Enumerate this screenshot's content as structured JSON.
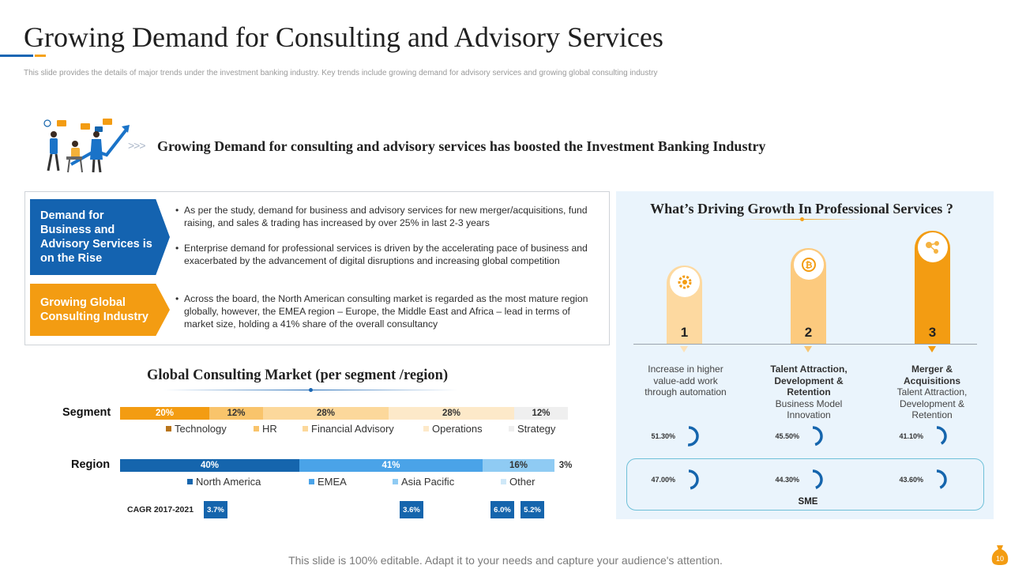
{
  "slide": {
    "title": "Growing Demand for Consulting and Advisory Services",
    "subtitle": "This slide provides the details of major trends under the investment banking industry. Key trends include growing demand for advisory services and growing global consulting industry",
    "footer": "This slide is 100% editable. Adapt it to your needs and capture your audience's attention.",
    "page_number": "10"
  },
  "hero": {
    "chevrons": ">>>",
    "text": "Growing Demand for consulting and advisory services has boosted the Investment Banking Industry"
  },
  "trends": {
    "tags": [
      {
        "label": "Demand for Business and Advisory Services is on the Rise"
      },
      {
        "label": "Growing Global Consulting Industry"
      }
    ],
    "bullets": [
      "As per the study, demand for business and advisory services for new merger/acquisitions, fund raising, and sales & trading has increased by over 25% in last 2-3 years",
      "Enterprise demand for professional services is driven by the accelerating pace of business and exacerbated by the advancement of digital disruptions and increasing global competition",
      "Across the board, the North American consulting market is regarded as the most mature region globally, however, the EMEA region – Europe, the Middle East and Africa – lead in terms of market size, holding a 41% share of the overall consultancy"
    ]
  },
  "market": {
    "title": "Global Consulting Market (per segment /region)",
    "segment_label": "Segment",
    "region_label": "Region",
    "segments": [
      {
        "name": "Technology",
        "label": "20%",
        "value": 20,
        "color": "#f39c12"
      },
      {
        "name": "HR",
        "label": "12%",
        "value": 12,
        "color": "#f9c46b"
      },
      {
        "name": "Financial Advisory",
        "label": "28%",
        "value": 28,
        "color": "#fcd89b"
      },
      {
        "name": "Operations",
        "label": "28%",
        "value": 28,
        "color": "#fde9c9"
      },
      {
        "name": "Strategy",
        "label": "12%",
        "value": 12,
        "color": "#efefef"
      }
    ],
    "segment_legend_colors": [
      "#b8741a",
      "#f9c46b",
      "#fcd89b",
      "#fde9c9",
      "#efefef"
    ],
    "regions": [
      {
        "name": "North America",
        "label": "40%",
        "value": 40,
        "color": "#1565ad"
      },
      {
        "name": "EMEA",
        "label": "41%",
        "value": 41,
        "color": "#4aa3e8"
      },
      {
        "name": "Asia Pacific",
        "label": "16%",
        "value": 16,
        "color": "#8fcbf3"
      },
      {
        "name": "Other",
        "label": "3%",
        "value": 3,
        "color": "#cfe8f8"
      }
    ],
    "cagr_label": "CAGR 2017-2021",
    "cagr": [
      "3.7%",
      "3.6%",
      "6.0%",
      "5.2%"
    ]
  },
  "growth": {
    "title": "What’s Driving Growth In Professional Services ?",
    "drivers": [
      {
        "number": "1",
        "title": "",
        "desc": "Increase in higher value-add work through automation",
        "icon": "gear-icon",
        "color": "#fdd9a0"
      },
      {
        "number": "2",
        "title": "Talent Attraction, Development & Retention",
        "desc": "Business Model Innovation",
        "icon": "bitcoin-gear-icon",
        "color": "#fcca7e"
      },
      {
        "number": "3",
        "title": "Merger & Acquisitions",
        "desc": "Talent Attraction, Development & Retention",
        "icon": "network-icon",
        "color": "#f39c12"
      }
    ],
    "gauges_top": [
      {
        "label": "51.30%",
        "value": 51.3
      },
      {
        "label": "45.50%",
        "value": 45.5
      },
      {
        "label": "41.10%",
        "value": 41.1
      }
    ],
    "gauges_sme": [
      {
        "label": "47.00%",
        "value": 47.0
      },
      {
        "label": "44.30%",
        "value": 44.3
      },
      {
        "label": "43.60%",
        "value": 43.6
      }
    ],
    "sme_label": "SME",
    "colors": {
      "gauge": "#1565ad",
      "triangle": "#f5b342"
    }
  }
}
